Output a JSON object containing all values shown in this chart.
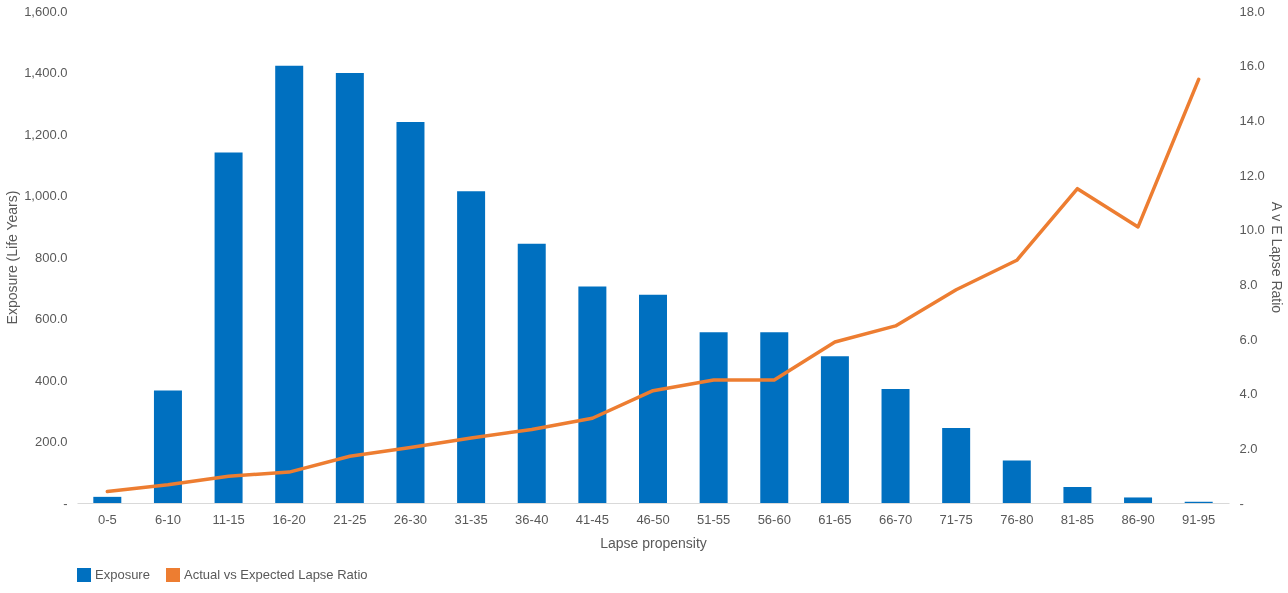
{
  "chart_data": {
    "type": "bar",
    "xlabel": "Lapse propensity",
    "ylabel": "Exposure (Life Years)",
    "y2label": "A v E Lapse Ratio",
    "categories": [
      "0-5",
      "6-10",
      "11-15",
      "16-20",
      "21-25",
      "26-30",
      "31-35",
      "36-40",
      "41-45",
      "46-50",
      "51-55",
      "56-60",
      "61-65",
      "66-70",
      "71-75",
      "76-80",
      "81-85",
      "86-90",
      "91-95"
    ],
    "series": [
      {
        "name": "Exposure",
        "color": "#0070c0",
        "values": [
          20,
          366,
          1140,
          1422,
          1398,
          1239,
          1014,
          843,
          704,
          677,
          555,
          555,
          477,
          371,
          244,
          138,
          52,
          18,
          4
        ]
      },
      {
        "name": "Actual vs Expected Lapse Ratio",
        "type": "line",
        "axis": "y2",
        "color": "#ed7d31",
        "values": [
          0.42,
          0.67,
          0.98,
          1.13,
          1.71,
          2.03,
          2.38,
          2.69,
          3.1,
          4.11,
          4.5,
          4.5,
          5.89,
          6.48,
          7.8,
          8.88,
          11.5,
          10.1,
          15.5
        ]
      }
    ],
    "ylim": [
      0,
      1600
    ],
    "yticks": [
      {
        "value": 0,
        "label": "-"
      },
      {
        "value": 200,
        "label": "200.0"
      },
      {
        "value": 400,
        "label": "400.0"
      },
      {
        "value": 600,
        "label": "600.0"
      },
      {
        "value": 800,
        "label": "800.0"
      },
      {
        "value": 1000,
        "label": "1,000.0"
      },
      {
        "value": 1200,
        "label": "1,200.0"
      },
      {
        "value": 1400,
        "label": "1,400.0"
      },
      {
        "value": 1600,
        "label": "1,600.0"
      }
    ],
    "y2lim": [
      0,
      18
    ],
    "y2ticks": [
      {
        "value": 0,
        "label": "-"
      },
      {
        "value": 2,
        "label": "2.0"
      },
      {
        "value": 4,
        "label": "4.0"
      },
      {
        "value": 6,
        "label": "6.0"
      },
      {
        "value": 8,
        "label": "8.0"
      },
      {
        "value": 10,
        "label": "10.0"
      },
      {
        "value": 12,
        "label": "12.0"
      },
      {
        "value": 14,
        "label": "14.0"
      },
      {
        "value": 16,
        "label": "16.0"
      },
      {
        "value": 18,
        "label": "18.0"
      }
    ],
    "grid": false,
    "legend": "bottom"
  }
}
